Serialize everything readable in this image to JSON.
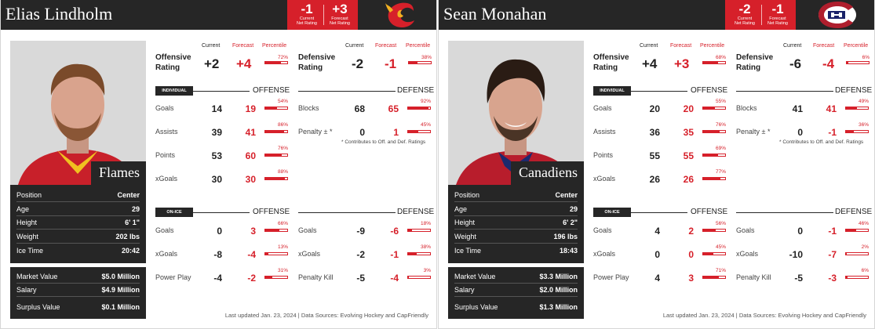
{
  "cards": [
    {
      "name": "Elias Lindholm",
      "team": "Flames",
      "net": {
        "current": "-1",
        "forecast": "+3",
        "current_label1": "Current",
        "current_label2": "Net Rating",
        "forecast_label1": "Forecast",
        "forecast_label2": "Net Rating"
      },
      "logo": "calgary-flames-logo",
      "col_headers": {
        "current": "Current",
        "forecast": "Forecast",
        "percentile": "Percentile"
      },
      "offensive_rating": {
        "label1": "Offensive",
        "label2": "Rating",
        "current": "+2",
        "forecast": "+4",
        "percentile": "72%",
        "pct": 72
      },
      "defensive_rating": {
        "label1": "Defensive",
        "label2": "Rating",
        "current": "-2",
        "forecast": "-1",
        "percentile": "38%",
        "pct": 38
      },
      "individual_tag": "INDIVIDUAL",
      "offense_title": "OFFENSE",
      "defense_title": "DEFENSE",
      "individual_offense": [
        {
          "label": "Goals",
          "current": "14",
          "forecast": "19",
          "percentile": "54%",
          "pct": 54
        },
        {
          "label": "Assists",
          "current": "39",
          "forecast": "41",
          "percentile": "86%",
          "pct": 86
        },
        {
          "label": "Points",
          "current": "53",
          "forecast": "60",
          "percentile": "76%",
          "pct": 76
        },
        {
          "label": "xGoals",
          "current": "30",
          "forecast": "30",
          "percentile": "88%",
          "pct": 88
        }
      ],
      "individual_defense": [
        {
          "label": "Blocks",
          "current": "68",
          "forecast": "65",
          "percentile": "92%",
          "pct": 92
        },
        {
          "label": "Penalty ± *",
          "current": "0",
          "forecast": "1",
          "percentile": "45%",
          "pct": 45
        }
      ],
      "note": "* Contributes to Off. and Def. Ratings",
      "onice_tag": "ON-ICE",
      "onice_offense": [
        {
          "label": "Goals",
          "current": "0",
          "forecast": "3",
          "percentile": "66%",
          "pct": 66
        },
        {
          "label": "xGoals",
          "current": "-8",
          "forecast": "-4",
          "percentile": "13%",
          "pct": 13
        },
        {
          "label": "Power Play",
          "current": "-4",
          "forecast": "-2",
          "percentile": "31%",
          "pct": 31
        }
      ],
      "onice_defense": [
        {
          "label": "Goals",
          "current": "-9",
          "forecast": "-6",
          "percentile": "18%",
          "pct": 18
        },
        {
          "label": "xGoals",
          "current": "-2",
          "forecast": "-1",
          "percentile": "38%",
          "pct": 38
        },
        {
          "label": "Penalty Kill",
          "current": "-5",
          "forecast": "-4",
          "percentile": "3%",
          "pct": 3
        }
      ],
      "info": [
        {
          "k": "Position",
          "v": "Center"
        },
        {
          "k": "Age",
          "v": "29"
        },
        {
          "k": "Height",
          "v": "6' 1\""
        },
        {
          "k": "Weight",
          "v": "202 lbs"
        },
        {
          "k": "Ice Time",
          "v": "20:42"
        }
      ],
      "contract": [
        {
          "k": "Market Value",
          "v": "$5.0 Million"
        },
        {
          "k": "Salary",
          "v": "$4.9 Million"
        },
        {
          "k": "Surplus Value",
          "v": "$0.1 Million"
        }
      ],
      "footer": "Last updated Jan. 23, 2024 | Data Sources: Evolving Hockey and CapFriendly"
    },
    {
      "name": "Sean Monahan",
      "team": "Canadiens",
      "net": {
        "current": "-2",
        "forecast": "-1",
        "current_label1": "Current",
        "current_label2": "Net Rating",
        "forecast_label1": "Forecast",
        "forecast_label2": "Net Rating"
      },
      "logo": "montreal-canadiens-logo",
      "col_headers": {
        "current": "Current",
        "forecast": "Forecast",
        "percentile": "Percentile"
      },
      "offensive_rating": {
        "label1": "Offensive",
        "label2": "Rating",
        "current": "+4",
        "forecast": "+3",
        "percentile": "68%",
        "pct": 68
      },
      "defensive_rating": {
        "label1": "Defensive",
        "label2": "Rating",
        "current": "-6",
        "forecast": "-4",
        "percentile": "6%",
        "pct": 6
      },
      "individual_tag": "INDIVIDUAL",
      "offense_title": "OFFENSE",
      "defense_title": "DEFENSE",
      "individual_offense": [
        {
          "label": "Goals",
          "current": "20",
          "forecast": "20",
          "percentile": "55%",
          "pct": 55
        },
        {
          "label": "Assists",
          "current": "36",
          "forecast": "35",
          "percentile": "76%",
          "pct": 76
        },
        {
          "label": "Points",
          "current": "55",
          "forecast": "55",
          "percentile": "69%",
          "pct": 69
        },
        {
          "label": "xGoals",
          "current": "26",
          "forecast": "26",
          "percentile": "77%",
          "pct": 77
        }
      ],
      "individual_defense": [
        {
          "label": "Blocks",
          "current": "41",
          "forecast": "41",
          "percentile": "49%",
          "pct": 49
        },
        {
          "label": "Penalty ± *",
          "current": "0",
          "forecast": "-1",
          "percentile": "36%",
          "pct": 36
        }
      ],
      "note": "* Contributes to Off. and Def. Ratings",
      "onice_tag": "ON-ICE",
      "onice_offense": [
        {
          "label": "Goals",
          "current": "4",
          "forecast": "2",
          "percentile": "56%",
          "pct": 56
        },
        {
          "label": "xGoals",
          "current": "0",
          "forecast": "0",
          "percentile": "45%",
          "pct": 45
        },
        {
          "label": "Power Play",
          "current": "4",
          "forecast": "3",
          "percentile": "71%",
          "pct": 71
        }
      ],
      "onice_defense": [
        {
          "label": "Goals",
          "current": "0",
          "forecast": "-1",
          "percentile": "46%",
          "pct": 46
        },
        {
          "label": "xGoals",
          "current": "-10",
          "forecast": "-7",
          "percentile": "2%",
          "pct": 2
        },
        {
          "label": "Penalty Kill",
          "current": "-5",
          "forecast": "-3",
          "percentile": "6%",
          "pct": 6
        }
      ],
      "info": [
        {
          "k": "Position",
          "v": "Center"
        },
        {
          "k": "Age",
          "v": "29"
        },
        {
          "k": "Height",
          "v": "6' 2\""
        },
        {
          "k": "Weight",
          "v": "196 lbs"
        },
        {
          "k": "Ice Time",
          "v": "18:43"
        }
      ],
      "contract": [
        {
          "k": "Market Value",
          "v": "$3.3 Million"
        },
        {
          "k": "Salary",
          "v": "$2.0 Million"
        },
        {
          "k": "Surplus Value",
          "v": "$1.3 Million"
        }
      ],
      "footer": "Last updated Jan. 23, 2024 | Data Sources: Evolving Hockey and CapFriendly"
    }
  ],
  "colors": {
    "accent": "#d6202a",
    "dark": "#262626"
  }
}
